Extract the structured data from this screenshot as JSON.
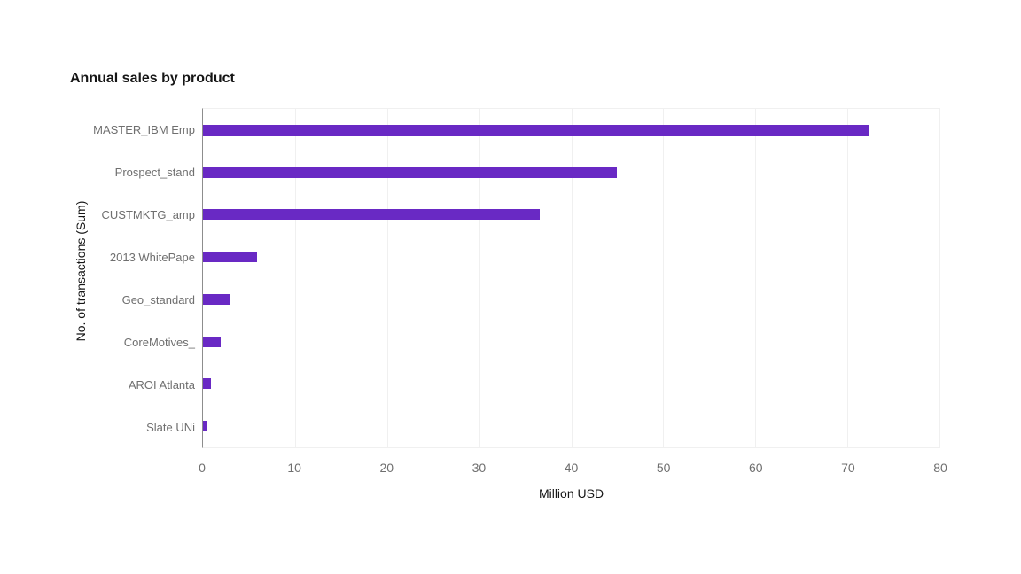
{
  "chart_data": {
    "type": "bar",
    "orientation": "horizontal",
    "title": "Annual sales by product",
    "xlabel": "Million USD",
    "ylabel": "No. of transactions (Sum)",
    "categories": [
      "MASTER_IBM Emp",
      "Prospect_stand",
      "CUSTMKTG_amp",
      "2013 WhitePape",
      "Geo_standard",
      "CoreMotives_",
      "AROI Atlanta",
      "Slate UNi"
    ],
    "values": [
      72.3,
      45,
      36.6,
      5.9,
      3,
      1.9,
      0.9,
      0.4
    ],
    "xlim": [
      0,
      80
    ],
    "xticks": [
      0,
      10,
      20,
      30,
      40,
      50,
      60,
      70,
      80
    ],
    "grid": "vertical-gridlines-only",
    "legend": "none",
    "colors": {
      "bar": "#6929c4",
      "title_text": "#161616",
      "axis_title_text": "#161616",
      "tick_text": "#6f6f6f",
      "category_text": "#6f6f6f",
      "gridline": "#f0f0f0",
      "axis_line": "#8d8d8d",
      "background": "#ffffff"
    }
  }
}
